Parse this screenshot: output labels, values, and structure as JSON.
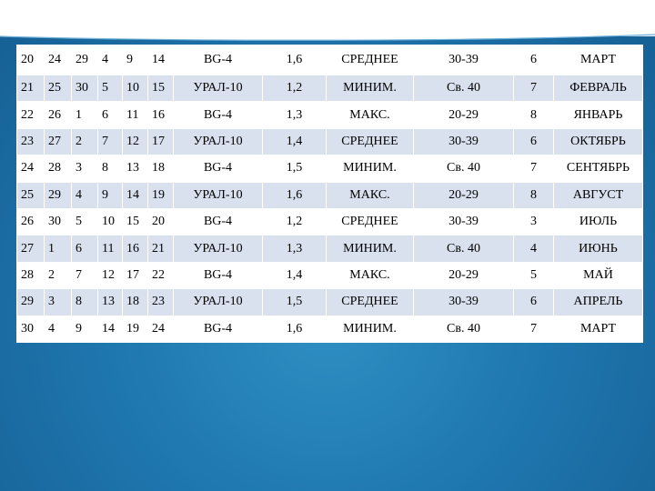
{
  "table": {
    "rows": [
      [
        "20",
        "24",
        "29",
        "4",
        "9",
        "14",
        "BG-4",
        "1,6",
        "СРЕДНЕЕ",
        "30-39",
        "6",
        "МАРТ"
      ],
      [
        "21",
        "25",
        "30",
        "5",
        "10",
        "15",
        "УРАЛ-10",
        "1,2",
        "МИНИМ.",
        "Св. 40",
        "7",
        "ФЕВРАЛЬ"
      ],
      [
        "22",
        "26",
        "1",
        "6",
        "11",
        "16",
        "BG-4",
        "1,3",
        "МАКС.",
        "20-29",
        "8",
        "ЯНВАРЬ"
      ],
      [
        "23",
        "27",
        "2",
        "7",
        "12",
        "17",
        "УРАЛ-10",
        "1,4",
        "СРЕДНЕЕ",
        "30-39",
        "6",
        "ОКТЯБРЬ"
      ],
      [
        "24",
        "28",
        "3",
        "8",
        "13",
        "18",
        "BG-4",
        "1,5",
        "МИНИМ.",
        "Св. 40",
        "7",
        "СЕНТЯБРЬ"
      ],
      [
        "25",
        "29",
        "4",
        "9",
        "14",
        "19",
        "УРАЛ-10",
        "1,6",
        "МАКС.",
        "20-29",
        "8",
        "АВГУСТ"
      ],
      [
        "26",
        "30",
        "5",
        "10",
        "15",
        "20",
        "BG-4",
        "1,2",
        "СРЕДНЕЕ",
        "30-39",
        "3",
        "ИЮЛЬ"
      ],
      [
        "27",
        "1",
        "6",
        "11",
        "16",
        "21",
        "УРАЛ-10",
        "1,3",
        "МИНИМ.",
        "Св. 40",
        "4",
        "ИЮНЬ"
      ],
      [
        "28",
        "2",
        "7",
        "12",
        "17",
        "22",
        "BG-4",
        "1,4",
        "МАКС.",
        "20-29",
        "5",
        "МАЙ"
      ],
      [
        "29",
        "3",
        "8",
        "13",
        "18",
        "23",
        "УРАЛ-10",
        "1,5",
        "СРЕДНЕЕ",
        "30-39",
        "6",
        "АПРЕЛЬ"
      ],
      [
        "30",
        "4",
        "9",
        "14",
        "19",
        "24",
        "BG-4",
        "1,6",
        "МИНИМ.",
        "Св. 40",
        "7",
        "МАРТ"
      ]
    ]
  },
  "colors": {
    "row_alt": "#d9e1ef",
    "background_blue": "#1f78b0"
  }
}
